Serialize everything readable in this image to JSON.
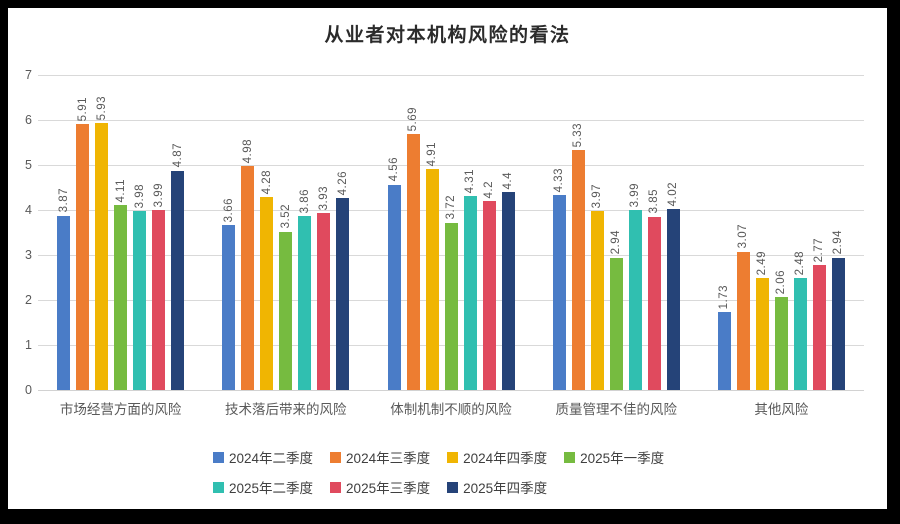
{
  "frame": {
    "border_color": "#000000",
    "background": "#ffffff"
  },
  "chart_data": {
    "type": "bar",
    "title": "从业者对本机构风险的看法",
    "categories": [
      "市场经营方面的风险",
      "技术落后带来的风险",
      "体制机制不顺的风险",
      "质量管理不佳的风险",
      "其他风险"
    ],
    "series": [
      {
        "name": "2024年二季度",
        "color": "#4a7cc7",
        "values": [
          3.87,
          3.66,
          4.56,
          4.33,
          1.73
        ]
      },
      {
        "name": "2024年三季度",
        "color": "#ed7d31",
        "values": [
          5.91,
          4.98,
          5.69,
          5.33,
          3.07
        ]
      },
      {
        "name": "2024年四季度",
        "color": "#f0b502",
        "values": [
          5.93,
          4.28,
          4.91,
          3.97,
          2.49
        ]
      },
      {
        "name": "2025年一季度",
        "color": "#76bb40",
        "values": [
          4.11,
          3.52,
          3.72,
          2.94,
          2.06
        ]
      },
      {
        "name": "2025年二季度",
        "color": "#30bfb0",
        "values": [
          3.98,
          3.86,
          4.31,
          3.99,
          2.48
        ]
      },
      {
        "name": "2025年三季度",
        "color": "#e04a5e",
        "values": [
          3.99,
          3.93,
          4.2,
          3.85,
          2.77
        ]
      },
      {
        "name": "2025年四季度",
        "color": "#254378",
        "values": [
          4.87,
          4.26,
          4.4,
          4.02,
          2.94
        ]
      }
    ],
    "xlabel": "",
    "ylabel": "",
    "ylim": [
      0,
      7
    ],
    "yticks": [
      0,
      1,
      2,
      3,
      4,
      5,
      6,
      7
    ],
    "grid": true,
    "data_labels": "rotated-90",
    "legend_position": "bottom",
    "legend_rows": [
      4,
      3
    ],
    "colors": {
      "grid": "#d9d9d9",
      "axis_text": "#595959",
      "label_text": "#595959",
      "legend_text": "#404040",
      "title_text": "#2b2b2b"
    }
  }
}
